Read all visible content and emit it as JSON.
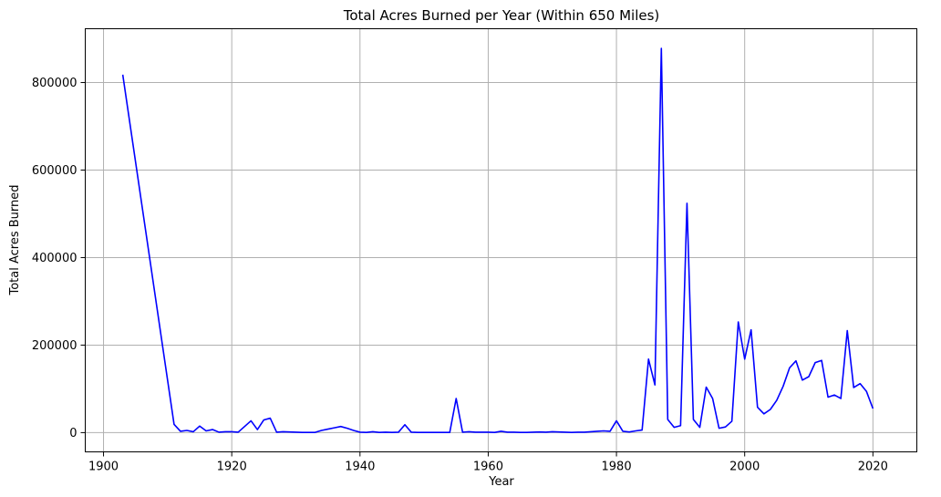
{
  "chart_data": {
    "type": "line",
    "title": "Total Acres Burned per Year (Within 650 Miles)",
    "xlabel": "Year",
    "ylabel": "Total Acres Burned",
    "xlim": [
      1897.15,
      2026.85
    ],
    "ylim": [
      -43950,
      923000
    ],
    "xticks": [
      1900,
      1920,
      1940,
      1960,
      1980,
      2000,
      2020
    ],
    "yticks": [
      0,
      200000,
      400000,
      600000,
      800000
    ],
    "grid": true,
    "line_color": "#0000ff",
    "series": [
      {
        "x": [
          1903,
          1911,
          1912,
          1913,
          1914,
          1915,
          1916,
          1917,
          1918,
          1919,
          1920,
          1921,
          1923,
          1924,
          1925,
          1926,
          1927,
          1928,
          1929,
          1930,
          1931,
          1932,
          1933,
          1934,
          1935,
          1936,
          1937,
          1938,
          1939,
          1940,
          1941,
          1942,
          1943,
          1944,
          1945,
          1946,
          1947,
          1948,
          1949,
          1950,
          1951,
          1952,
          1953,
          1954,
          1955,
          1956,
          1957,
          1958,
          1959,
          1960,
          1961,
          1962,
          1963,
          1964,
          1965,
          1966,
          1967,
          1968,
          1969,
          1970,
          1971,
          1972,
          1973,
          1974,
          1975,
          1976,
          1977,
          1978,
          1979,
          1980,
          1981,
          1982,
          1983,
          1984,
          1985,
          1986,
          1987,
          1988,
          1989,
          1990,
          1991,
          1992,
          1993,
          1994,
          1995,
          1996,
          1997,
          1998,
          1999,
          2000,
          2001,
          2002,
          2003,
          2004,
          2005,
          2006,
          2007,
          2008,
          2009,
          2010,
          2011,
          2012,
          2013,
          2014,
          2015,
          2016,
          2017,
          2018,
          2019,
          2020
        ],
        "y": [
          818000,
          19000,
          3000,
          5000,
          2000,
          15000,
          4000,
          7000,
          1000,
          2000,
          2000,
          1000,
          27000,
          7000,
          29000,
          33000,
          1000,
          2000,
          1500,
          1000,
          500,
          500,
          500,
          5000,
          8000,
          11000,
          14000,
          10000,
          5000,
          1000,
          500,
          2000,
          500,
          1000,
          500,
          1000,
          18000,
          1000,
          500,
          500,
          500,
          500,
          500,
          500,
          78000,
          1000,
          2000,
          1000,
          1000,
          1000,
          500,
          3000,
          1000,
          1000,
          500,
          500,
          1000,
          1500,
          1000,
          2000,
          1500,
          1000,
          500,
          1000,
          1000,
          2000,
          3000,
          4000,
          3000,
          27000,
          3000,
          1500,
          4000,
          6000,
          168000,
          109000,
          878000,
          30000,
          12000,
          16000,
          524000,
          30000,
          12000,
          104000,
          78000,
          10000,
          13000,
          26000,
          253000,
          168000,
          235000,
          58000,
          43000,
          53000,
          74000,
          106000,
          148000,
          164000,
          120000,
          128000,
          160000,
          165000,
          81000,
          86000,
          78000,
          233000,
          103000,
          112000,
          94000,
          55000
        ]
      }
    ]
  }
}
